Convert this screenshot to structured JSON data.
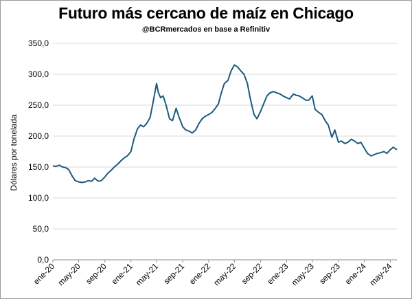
{
  "chart_data": {
    "type": "line",
    "title": "Futuro más cercano de maíz en Chicago",
    "subtitle": "@BCRmercados en base a Refinitiv",
    "xlabel": "",
    "ylabel": "Dólares por tonelada",
    "ylim": [
      0,
      350
    ],
    "y_ticks": [
      "0,0",
      "50,0",
      "100,0",
      "150,0",
      "200,0",
      "250,0",
      "300,0",
      "350,0"
    ],
    "x_ticks": [
      "ene-20",
      "may-20",
      "sep-20",
      "ene-21",
      "may-21",
      "sep-21",
      "ene-22",
      "may-22",
      "sep-22",
      "ene-23",
      "may-23",
      "sep-23",
      "ene-24",
      "may-24"
    ],
    "grid": "horizontal",
    "line_color": "#1b5a7e",
    "series": [
      {
        "x": [
          "2020-01-01",
          "2020-01-15",
          "2020-02-01",
          "2020-02-15",
          "2020-03-01",
          "2020-03-15",
          "2020-04-01",
          "2020-04-15",
          "2020-05-01",
          "2020-05-15",
          "2020-06-01",
          "2020-06-15",
          "2020-07-01",
          "2020-07-15",
          "2020-08-01",
          "2020-08-15",
          "2020-09-01",
          "2020-09-15",
          "2020-10-01",
          "2020-10-15",
          "2020-11-01",
          "2020-11-15",
          "2020-12-01",
          "2020-12-15",
          "2021-01-01",
          "2021-01-15",
          "2021-02-01",
          "2021-02-15",
          "2021-03-01",
          "2021-03-15",
          "2021-04-01",
          "2021-04-15",
          "2021-05-01",
          "2021-05-10",
          "2021-05-20",
          "2021-06-01",
          "2021-06-15",
          "2021-07-01",
          "2021-07-15",
          "2021-08-01",
          "2021-08-15",
          "2021-09-01",
          "2021-09-15",
          "2021-10-01",
          "2021-10-15",
          "2021-11-01",
          "2021-11-15",
          "2021-12-01",
          "2021-12-15",
          "2022-01-01",
          "2022-01-15",
          "2022-02-01",
          "2022-02-15",
          "2022-03-01",
          "2022-03-15",
          "2022-04-01",
          "2022-04-15",
          "2022-05-01",
          "2022-05-15",
          "2022-06-01",
          "2022-06-15",
          "2022-07-01",
          "2022-07-15",
          "2022-08-01",
          "2022-08-15",
          "2022-09-01",
          "2022-09-15",
          "2022-10-01",
          "2022-10-15",
          "2022-11-01",
          "2022-11-15",
          "2022-12-01",
          "2022-12-15",
          "2023-01-01",
          "2023-01-15",
          "2023-02-01",
          "2023-02-15",
          "2023-03-01",
          "2023-03-15",
          "2023-04-01",
          "2023-04-15",
          "2023-05-01",
          "2023-05-15",
          "2023-06-01",
          "2023-06-15",
          "2023-07-01",
          "2023-07-15",
          "2023-08-01",
          "2023-08-15",
          "2023-09-01",
          "2023-09-15",
          "2023-10-01",
          "2023-10-15",
          "2023-11-01",
          "2023-11-15",
          "2023-12-01",
          "2023-12-15",
          "2024-01-01",
          "2024-01-15",
          "2024-02-01",
          "2024-02-15",
          "2024-03-01",
          "2024-03-15",
          "2024-04-01",
          "2024-04-15",
          "2024-05-01",
          "2024-05-15",
          "2024-06-01"
        ],
        "y": [
          152,
          151,
          153,
          150,
          149,
          146,
          135,
          128,
          126,
          125,
          126,
          128,
          127,
          132,
          127,
          128,
          134,
          140,
          145,
          150,
          155,
          160,
          165,
          168,
          175,
          195,
          212,
          218,
          215,
          220,
          230,
          255,
          285,
          270,
          262,
          265,
          250,
          228,
          225,
          245,
          230,
          215,
          210,
          208,
          205,
          210,
          220,
          228,
          232,
          235,
          238,
          245,
          252,
          270,
          285,
          290,
          305,
          315,
          312,
          305,
          300,
          285,
          260,
          235,
          228,
          240,
          252,
          265,
          270,
          272,
          270,
          268,
          265,
          262,
          260,
          268,
          266,
          265,
          262,
          258,
          258,
          265,
          243,
          238,
          235,
          225,
          218,
          198,
          210,
          190,
          192,
          188,
          190,
          195,
          192,
          188,
          190,
          180,
          172,
          168,
          170,
          172,
          173,
          175,
          172,
          178,
          182,
          178
        ]
      }
    ]
  }
}
